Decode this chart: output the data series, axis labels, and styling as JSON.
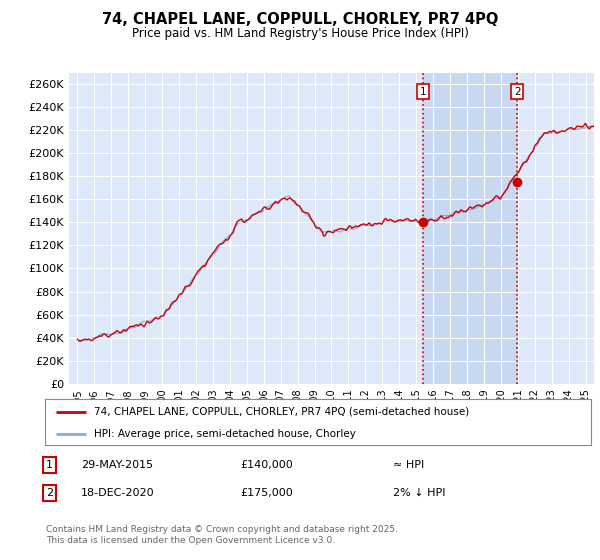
{
  "title": "74, CHAPEL LANE, COPPULL, CHORLEY, PR7 4PQ",
  "subtitle": "Price paid vs. HM Land Registry's House Price Index (HPI)",
  "ylabel_ticks": [
    "£0",
    "£20K",
    "£40K",
    "£60K",
    "£80K",
    "£100K",
    "£120K",
    "£140K",
    "£160K",
    "£180K",
    "£200K",
    "£220K",
    "£240K",
    "£260K"
  ],
  "ytick_values": [
    0,
    20000,
    40000,
    60000,
    80000,
    100000,
    120000,
    140000,
    160000,
    180000,
    200000,
    220000,
    240000,
    260000
  ],
  "ylim": [
    0,
    270000
  ],
  "xlim_start": 1994.5,
  "xlim_end": 2025.5,
  "xticks": [
    1995,
    1996,
    1997,
    1998,
    1999,
    2000,
    2001,
    2002,
    2003,
    2004,
    2005,
    2006,
    2007,
    2008,
    2009,
    2010,
    2011,
    2012,
    2013,
    2014,
    2015,
    2016,
    2017,
    2018,
    2019,
    2020,
    2021,
    2022,
    2023,
    2024,
    2025
  ],
  "sale1_x": 2015.41,
  "sale1_y": 140000,
  "sale2_x": 2020.96,
  "sale2_y": 175000,
  "sale1_date": "29-MAY-2015",
  "sale1_price": "£140,000",
  "sale1_hpi": "≈ HPI",
  "sale2_date": "18-DEC-2020",
  "sale2_price": "£175,000",
  "sale2_hpi": "2% ↓ HPI",
  "red_line_color": "#cc0000",
  "blue_line_color": "#88aadd",
  "dot_color": "#cc0000",
  "vline_color": "#cc0000",
  "background_color": "#dde8f8",
  "shade_color": "#c8d8f0",
  "grid_color": "#ffffff",
  "legend_line1": "74, CHAPEL LANE, COPPULL, CHORLEY, PR7 4PQ (semi-detached house)",
  "legend_line2": "HPI: Average price, semi-detached house, Chorley",
  "footer": "Contains HM Land Registry data © Crown copyright and database right 2025.\nThis data is licensed under the Open Government Licence v3.0."
}
